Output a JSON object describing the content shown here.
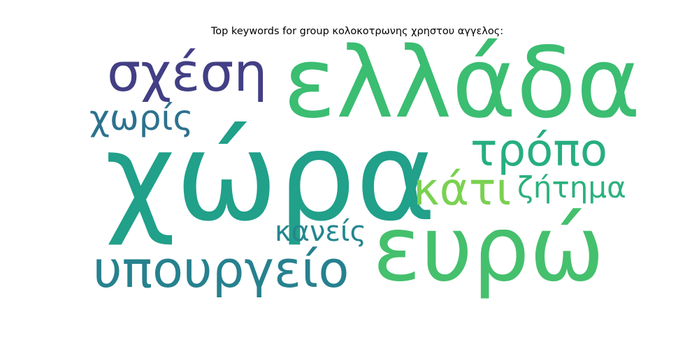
{
  "title": "Top keywords for group κολοκοτρωνης χρηστου αγγελος:",
  "words": [
    {
      "text": "χώρα",
      "color": "#21a08a"
    },
    {
      "text": "ελλάδα",
      "color": "#3bbd72"
    },
    {
      "text": "ευρώ",
      "color": "#45c06d"
    },
    {
      "text": "υπουργείο",
      "color": "#26818e"
    },
    {
      "text": "σχέση",
      "color": "#423f85"
    },
    {
      "text": "τρόπο",
      "color": "#27ae80"
    },
    {
      "text": "κάτι",
      "color": "#7ad151"
    },
    {
      "text": "χωρίς",
      "color": "#2c728e"
    },
    {
      "text": "ζήτημα",
      "color": "#2cb17e"
    },
    {
      "text": "κανείς",
      "color": "#24868e"
    }
  ]
}
